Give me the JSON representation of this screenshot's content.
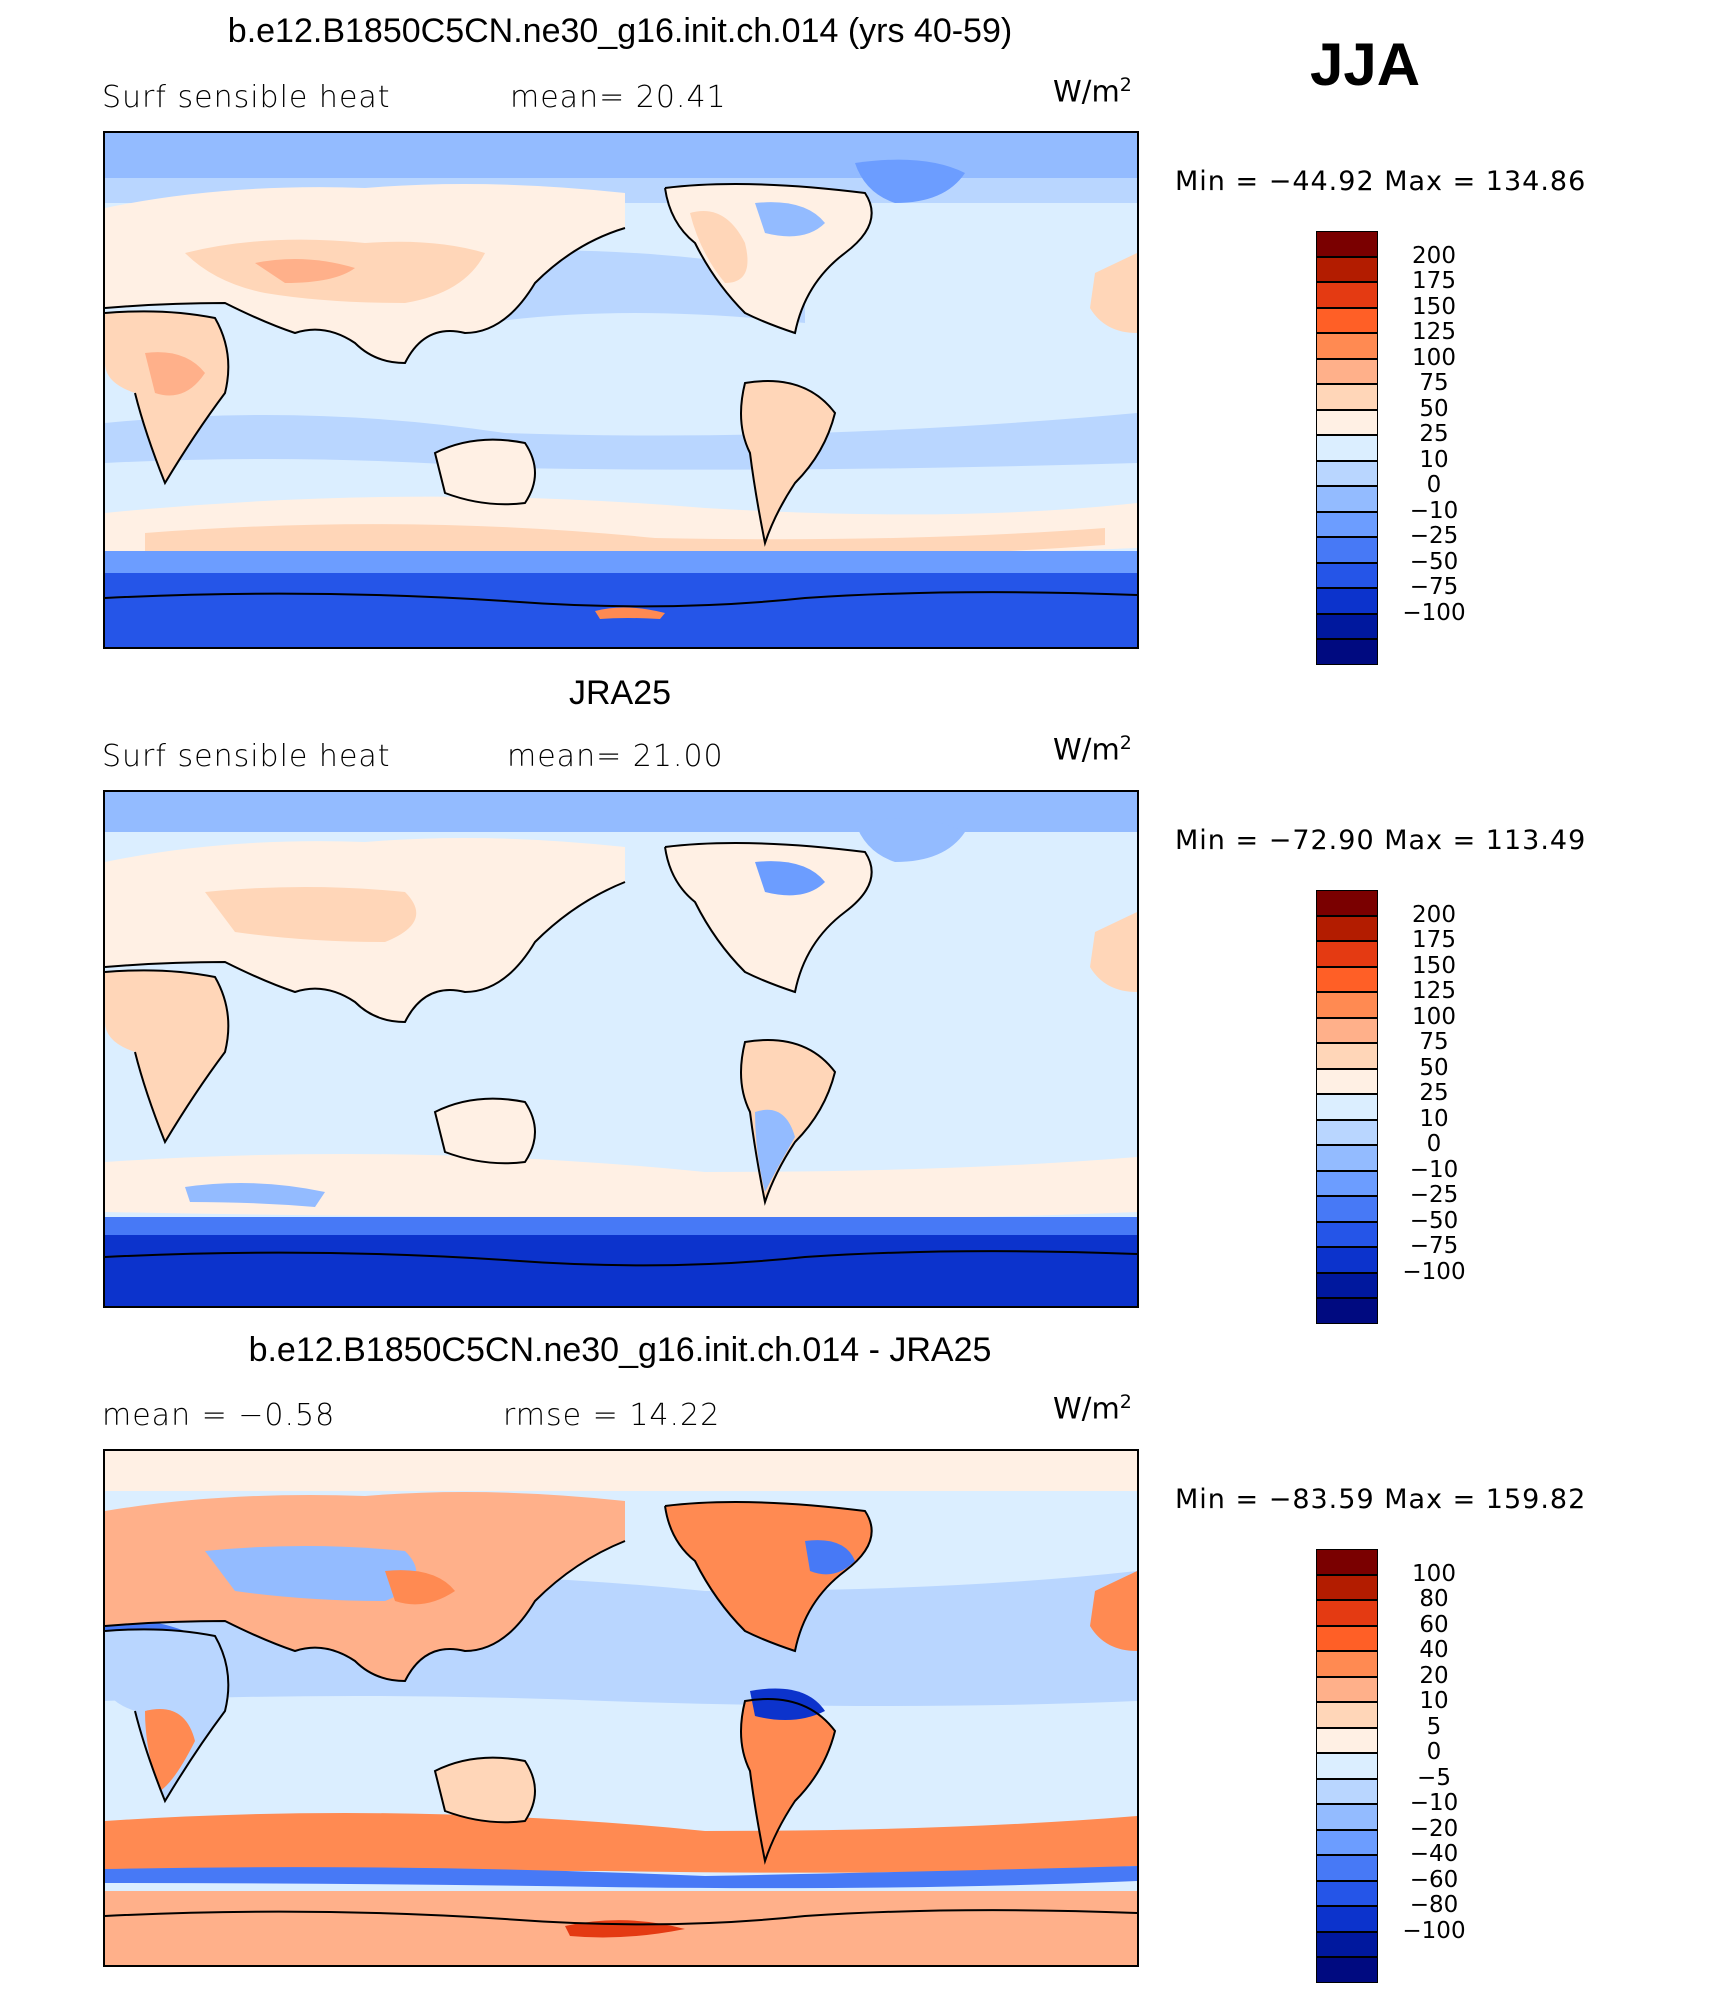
{
  "season": "JJA",
  "panels": [
    {
      "title": "b.e12.B1850C5CN.ne30_g16.init.ch.014 (yrs 40-59)",
      "left_label": "Surf  sensible  heat",
      "center_label": "mean=   20.41",
      "units_base": "W/m",
      "units_exp": "2",
      "minmax": "Min  =  −44.92  Max  =  134.86",
      "colorbar": {
        "colors": [
          "#7a0000",
          "#b31c00",
          "#e43a12",
          "#ff5f26",
          "#ff8a52",
          "#ffb08a",
          "#ffd6b8",
          "#fff0e4",
          "#dbeeff",
          "#b9d6ff",
          "#93bbff",
          "#6c9dff",
          "#4779f6",
          "#2555e8",
          "#0c33cc",
          "#00189e",
          "#000a80"
        ],
        "ticks": [
          "200",
          "175",
          "150",
          "125",
          "100",
          "75",
          "50",
          "25",
          "10",
          "0",
          "−10",
          "−25",
          "−50",
          "−75",
          "−100"
        ]
      }
    },
    {
      "title": "JRA25",
      "left_label": "Surf  sensible  heat",
      "center_label": "mean=   21.00",
      "units_base": "W/m",
      "units_exp": "2",
      "minmax": "Min  =  −72.90  Max  =  113.49",
      "colorbar": {
        "colors": [
          "#7a0000",
          "#b31c00",
          "#e43a12",
          "#ff5f26",
          "#ff8a52",
          "#ffb08a",
          "#ffd6b8",
          "#fff0e4",
          "#dbeeff",
          "#b9d6ff",
          "#93bbff",
          "#6c9dff",
          "#4779f6",
          "#2555e8",
          "#0c33cc",
          "#00189e",
          "#000a80"
        ],
        "ticks": [
          "200",
          "175",
          "150",
          "125",
          "100",
          "75",
          "50",
          "25",
          "10",
          "0",
          "−10",
          "−25",
          "−50",
          "−75",
          "−100"
        ]
      }
    },
    {
      "title": "b.e12.B1850C5CN.ne30_g16.init.ch.014 - JRA25",
      "left_label": "mean  =    −0.58",
      "center_label": "rmse  =    14.22",
      "units_base": "W/m",
      "units_exp": "2",
      "minmax": "Min  =  −83.59  Max  =  159.82",
      "colorbar": {
        "colors": [
          "#7a0000",
          "#b31c00",
          "#e43a12",
          "#ff5f26",
          "#ff8a52",
          "#ffb08a",
          "#ffd6b8",
          "#fff0e4",
          "#dbeeff",
          "#b9d6ff",
          "#93bbff",
          "#6c9dff",
          "#4779f6",
          "#2555e8",
          "#0c33cc",
          "#00189e",
          "#000a80"
        ],
        "ticks": [
          "100",
          "80",
          "60",
          "40",
          "20",
          "10",
          "5",
          "0",
          "−5",
          "−10",
          "−20",
          "−40",
          "−60",
          "−80",
          "−100"
        ]
      }
    }
  ],
  "chart_data": {
    "type": "heatmap",
    "season": "JJA",
    "variable": "Surf sensible heat",
    "units": "W/m2",
    "maps": [
      {
        "title": "b.e12.B1850C5CN.ne30_g16.init.ch.014 (yrs 40-59)",
        "mean": 20.41,
        "min": -44.92,
        "max": 134.86,
        "levels": [
          -100,
          -75,
          -50,
          -25,
          -10,
          0,
          10,
          25,
          50,
          75,
          100,
          125,
          150,
          175,
          200
        ]
      },
      {
        "title": "JRA25",
        "mean": 21.0,
        "min": -72.9,
        "max": 113.49,
        "levels": [
          -100,
          -75,
          -50,
          -25,
          -10,
          0,
          10,
          25,
          50,
          75,
          100,
          125,
          150,
          175,
          200
        ]
      },
      {
        "title": "b.e12.B1850C5CN.ne30_g16.init.ch.014 - JRA25",
        "mean": -0.58,
        "rmse": 14.22,
        "min": -83.59,
        "max": 159.82,
        "levels": [
          -100,
          -80,
          -60,
          -40,
          -20,
          -10,
          -5,
          0,
          5,
          10,
          20,
          40,
          60,
          80,
          100
        ]
      }
    ]
  }
}
